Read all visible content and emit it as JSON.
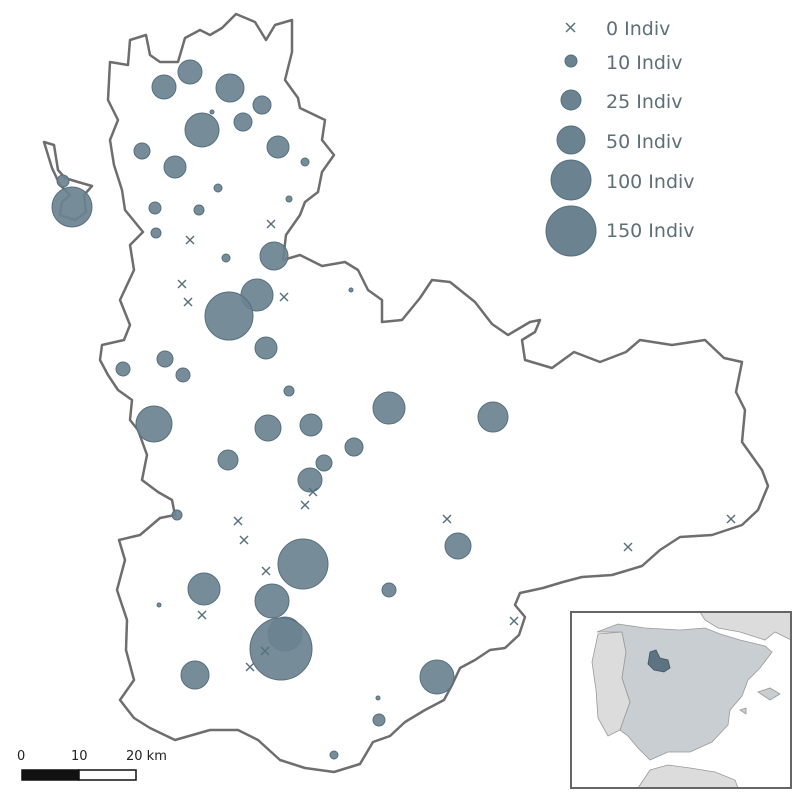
{
  "colors": {
    "symbol": "#6b8290",
    "symbol_stroke": "#56707d",
    "outline": "#6e6e6e",
    "legend_text": "#5d6f78",
    "inset_land": "#c8ced2",
    "inset_other": "#dcdcdc",
    "inset_sea": "#ffffff",
    "inset_highlight": "#5c7482"
  },
  "legend": [
    {
      "label": "0 Indiv",
      "value": 0
    },
    {
      "label": "10 Indiv",
      "value": 10
    },
    {
      "label": "25 Indiv",
      "value": 25
    },
    {
      "label": "50 Indiv",
      "value": 50
    },
    {
      "label": "100 Indiv",
      "value": 100
    },
    {
      "label": "150 Indiv",
      "value": 150
    }
  ],
  "scale_bar": {
    "labels": [
      "0",
      "10",
      "20 km"
    ]
  },
  "inset": {
    "icon": "iberian-peninsula-locator"
  }
}
